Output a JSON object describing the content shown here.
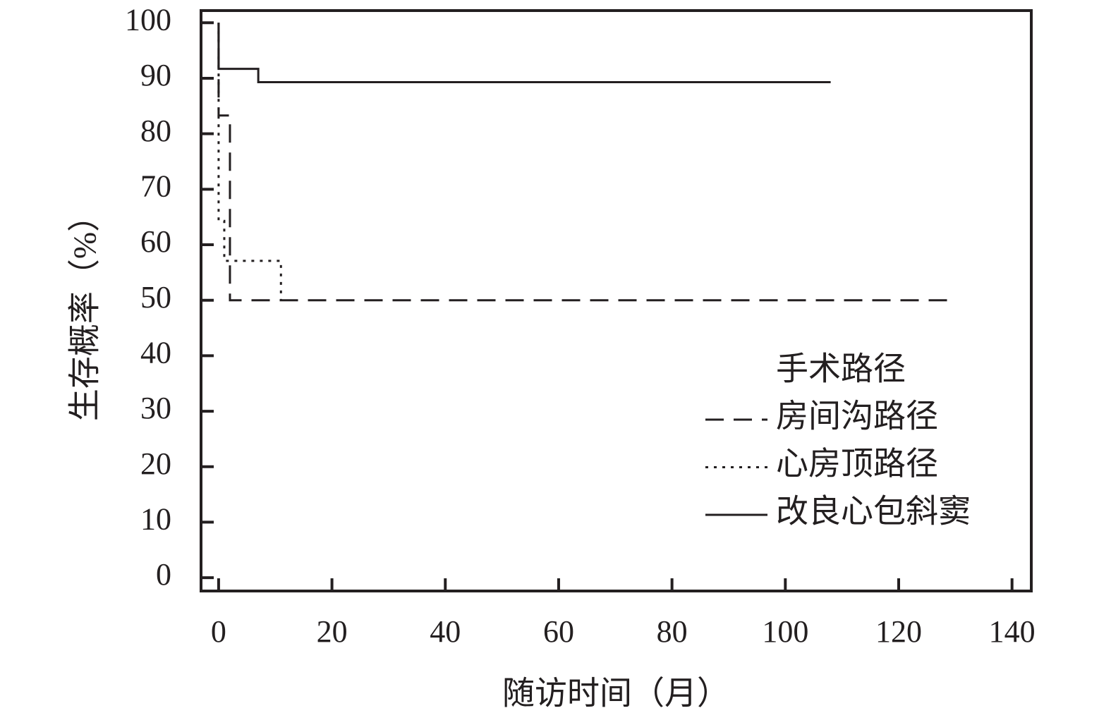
{
  "chart_data": {
    "type": "line",
    "y_label": "生存概率（%）",
    "x_label": "随访时间（月）",
    "legend_title": "手术路径",
    "xlim": [
      -3.1,
      143.4
    ],
    "ylim": [
      -2.4,
      102.2
    ],
    "xticks": [
      0,
      20,
      40,
      60,
      80,
      100,
      120,
      140
    ],
    "yticks": [
      0,
      10,
      20,
      30,
      40,
      50,
      60,
      70,
      80,
      90,
      100
    ],
    "legend_position": "lower right",
    "series": [
      {
        "name": "房间沟路径",
        "color": "#231f20",
        "style": "dashed",
        "x": [
          0,
          0,
          2,
          2,
          129
        ],
        "values": [
          100,
          83.3,
          83.3,
          50,
          50
        ]
      },
      {
        "name": "心房顶路径",
        "color": "#231f20",
        "style": "dotted",
        "x": [
          0,
          0,
          1,
          1,
          11,
          11
        ],
        "values": [
          100,
          64.3,
          64.3,
          57.1,
          57.1,
          50
        ]
      },
      {
        "name": "改良心包斜窦",
        "color": "#231f20",
        "style": "solid",
        "x": [
          0,
          0,
          7,
          7,
          108
        ],
        "values": [
          100,
          91.7,
          91.7,
          89.3,
          89.3
        ]
      }
    ]
  }
}
